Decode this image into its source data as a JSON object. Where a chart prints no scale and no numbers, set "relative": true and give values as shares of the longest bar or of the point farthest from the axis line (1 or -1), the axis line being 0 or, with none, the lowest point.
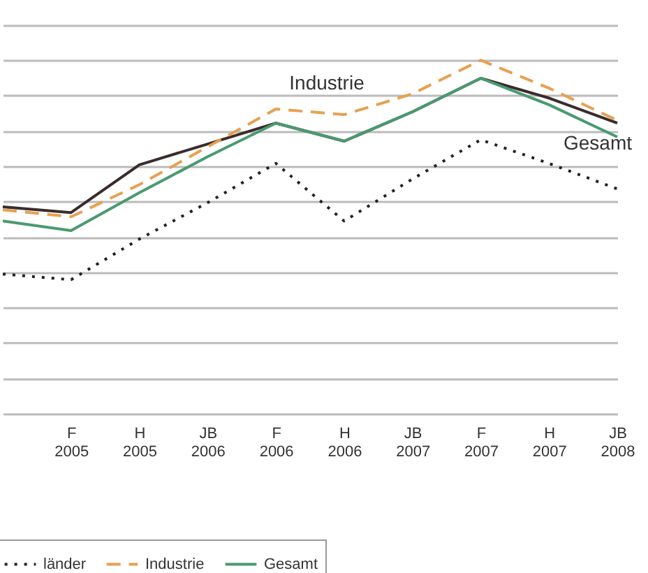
{
  "chart_data": {
    "type": "line",
    "relative": true,
    "grid": "y",
    "legend": "bottom",
    "marker": "none",
    "categories": [
      null,
      "F 2005",
      "H 2005",
      "JB 2006",
      "F 2006",
      "H 2006",
      "JB 2007",
      "F 2007",
      "H 2007",
      "JB 2008"
    ],
    "series": [
      {
        "color": "#3a2c2c",
        "line_style": "solid",
        "values": [
          0.585,
          0.569,
          0.704,
          0.763,
          0.822,
          0.771,
          0.854,
          0.949,
          0.893,
          0.822
        ]
      },
      {
        "name": "länder",
        "color": "#222222",
        "line_style": "dotted",
        "values": [
          0.395,
          0.379,
          0.494,
          0.597,
          0.708,
          0.545,
          0.664,
          0.775,
          0.708,
          0.636
        ]
      },
      {
        "name": "Industrie",
        "color": "#e8a050",
        "line_style": "dashed",
        "values": [
          0.577,
          0.557,
          0.648,
          0.755,
          0.862,
          0.846,
          0.905,
          1,
          0.921,
          0.83
        ]
      },
      {
        "name": "Gesamt",
        "color": "#4a9a70",
        "line_style": "solid",
        "values": [
          0.545,
          0.518,
          0.625,
          0.727,
          0.822,
          0.771,
          0.854,
          0.949,
          0.874,
          0.783
        ]
      }
    ],
    "annotations": [
      "Industrie",
      "Gesamt"
    ]
  }
}
